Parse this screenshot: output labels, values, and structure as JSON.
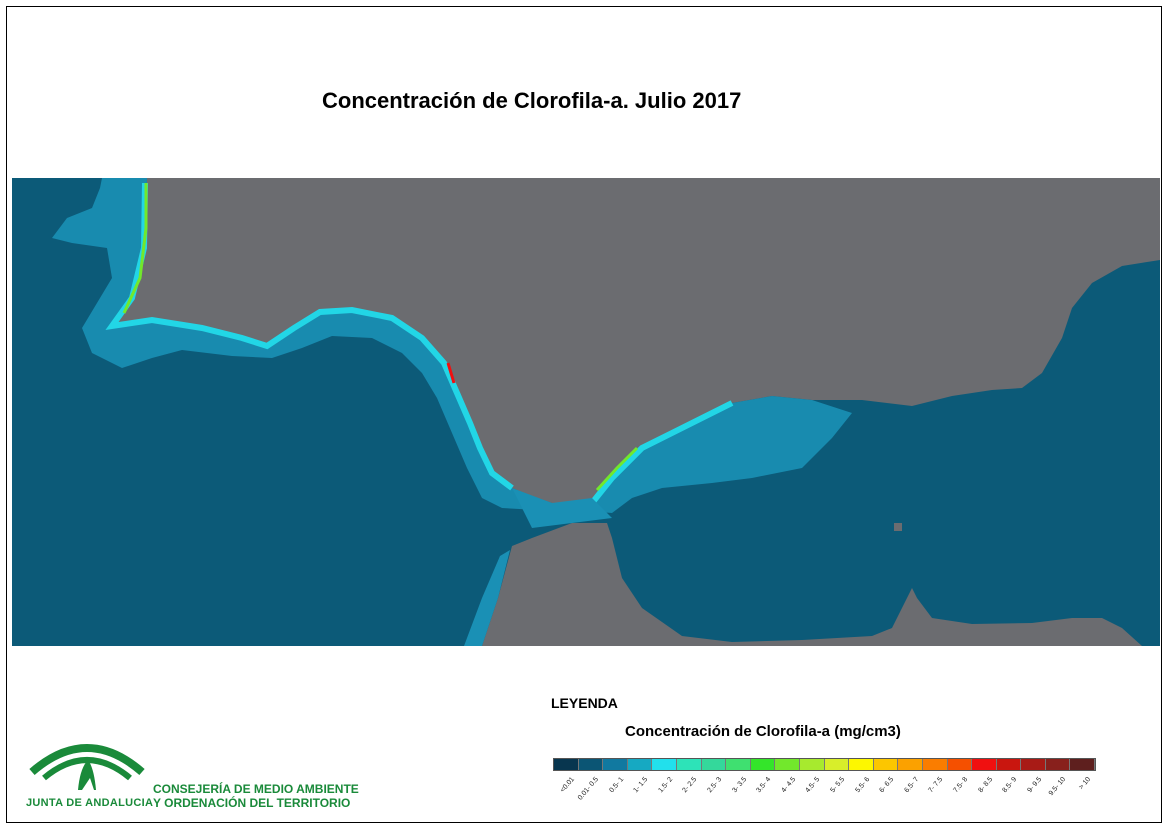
{
  "title": "Concentración de Clorofila-a. Julio 2017",
  "legend": {
    "heading": "LEYENDA",
    "subtitle": "Concentración de Clorofila-a (mg/cm3)",
    "classes": [
      {
        "label": "<0.01",
        "color": "#08364f"
      },
      {
        "label": "0.01- 0.5",
        "color": "#0b5574"
      },
      {
        "label": "0.5- 1",
        "color": "#1179a0"
      },
      {
        "label": "1- 1.5",
        "color": "#16a9c2"
      },
      {
        "label": "1.5- 2",
        "color": "#22e0ec"
      },
      {
        "label": "2- 2.5",
        "color": "#2de3b8"
      },
      {
        "label": "2.5- 3",
        "color": "#34d89b"
      },
      {
        "label": "3- 3.5",
        "color": "#3fe070"
      },
      {
        "label": "3.5- 4",
        "color": "#34e52a"
      },
      {
        "label": "4- 4.5",
        "color": "#72e82c"
      },
      {
        "label": "4.5- 5",
        "color": "#a7ea2e"
      },
      {
        "label": "5- 5.5",
        "color": "#d8ee2a"
      },
      {
        "label": "5.5- 6",
        "color": "#fdf700"
      },
      {
        "label": "6- 6.5",
        "color": "#fcc600"
      },
      {
        "label": "6.5- 7",
        "color": "#fba100"
      },
      {
        "label": "7- 7.5",
        "color": "#fa7d00"
      },
      {
        "label": "7.5- 8",
        "color": "#f55000"
      },
      {
        "label": "8- 8.5",
        "color": "#f01010"
      },
      {
        "label": "8.5- 9",
        "color": "#c9160f"
      },
      {
        "label": "9- 9.5",
        "color": "#a81b16"
      },
      {
        "label": "9.5- 10",
        "color": "#88201c"
      },
      {
        "label": "> 10",
        "color": "#5e1f1e"
      }
    ]
  },
  "colors": {
    "land": "#6b6c70",
    "sea": "#0c5a78",
    "coastal_mid": "#1a90b5",
    "coastal_high": "#22d6e6"
  },
  "logo": {
    "name": "JUNTA DE ANDALUCIA",
    "department": [
      "CONSEJERÍA DE MEDIO AMBIENTE",
      "Y ORDENACIÓN DEL TERRITORIO"
    ]
  }
}
